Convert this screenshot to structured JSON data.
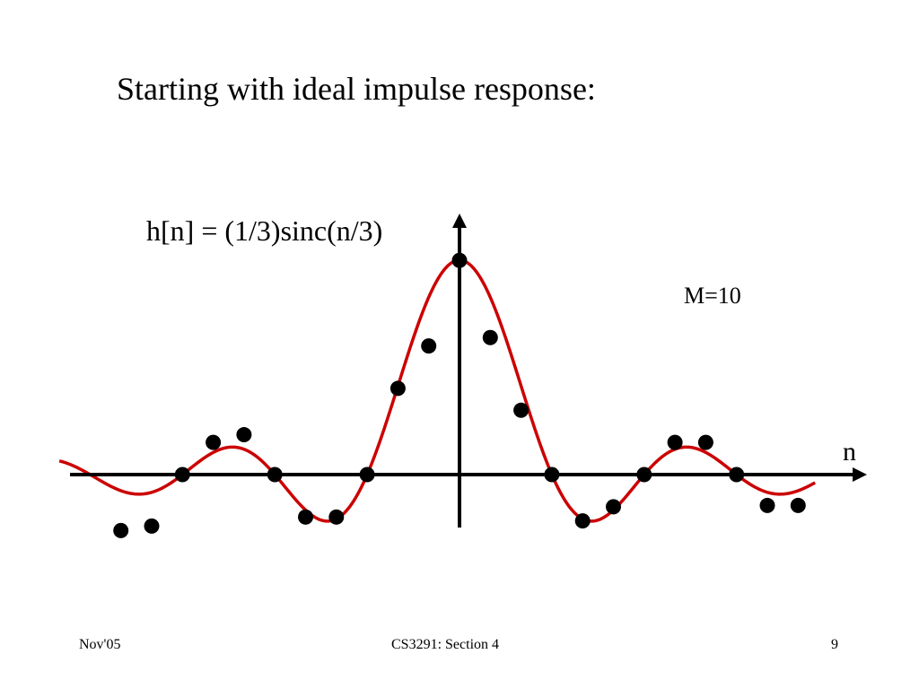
{
  "slide": {
    "title": "Starting with ideal impulse response:",
    "equation": "h[n] = (1/3)sinc(n/3)",
    "m_label": "M=10",
    "n_label": "n"
  },
  "footer": {
    "date": "Nov'05",
    "course": "CS3291: Section 4",
    "page": "9"
  },
  "chart_data": {
    "type": "scatter",
    "title": "",
    "xlabel": "n",
    "ylabel": "",
    "xlim": [
      -12.8,
      12.8
    ],
    "ylim": [
      -0.12,
      0.4
    ],
    "grid": false,
    "colors": {
      "curve": "#cc0000",
      "points": "#000000",
      "axes": "#000000"
    },
    "curve_formula": "(1/3)sinc(n/3)",
    "x": [
      -11,
      -10,
      -9,
      -8,
      -7,
      -6,
      -5,
      -4,
      -3,
      -2,
      -1,
      0,
      1,
      2,
      3,
      4,
      5,
      6,
      7,
      8,
      9,
      10,
      11
    ],
    "values": [
      -0.087,
      -0.08,
      0,
      0.05,
      0.062,
      0,
      -0.066,
      -0.066,
      0,
      0.134,
      0.2,
      0.333,
      0.213,
      0.1,
      0,
      -0.072,
      -0.05,
      0,
      0.05,
      0.05,
      0,
      -0.048,
      -0.048
    ]
  }
}
